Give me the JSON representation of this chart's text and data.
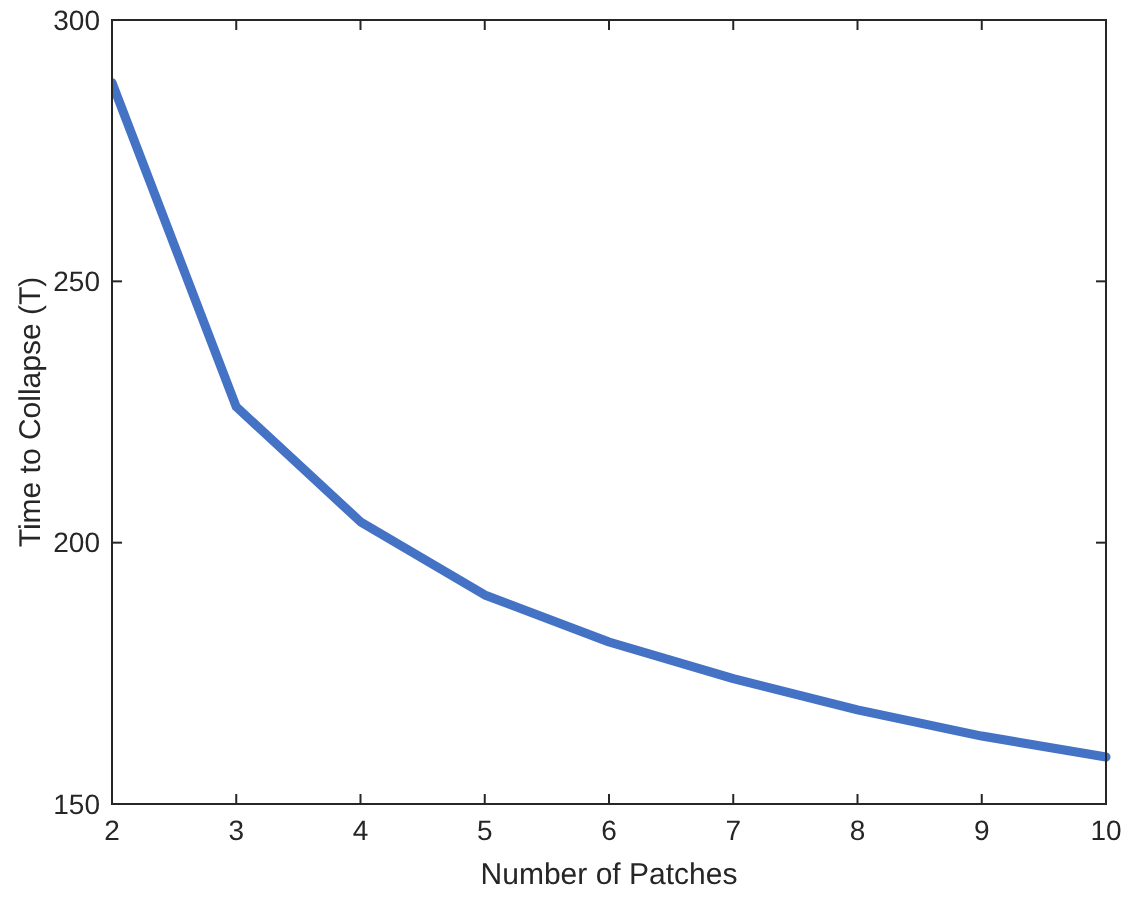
{
  "chart_data": {
    "type": "line",
    "xlabel": "Number of Patches",
    "ylabel": "Time to Collapse (T)",
    "x": [
      2,
      3,
      4,
      5,
      6,
      7,
      8,
      9,
      10
    ],
    "series": [
      {
        "color": "#4472c4",
        "values": [
          288,
          226,
          204,
          190,
          181,
          174,
          168,
          163,
          159
        ]
      }
    ],
    "xlim": [
      2,
      10
    ],
    "xticks": [
      2,
      3,
      4,
      5,
      6,
      7,
      8,
      9,
      10
    ],
    "ylim": [
      150,
      300
    ],
    "yticks": [
      150,
      200,
      250,
      300
    ],
    "line_style": "solid"
  }
}
